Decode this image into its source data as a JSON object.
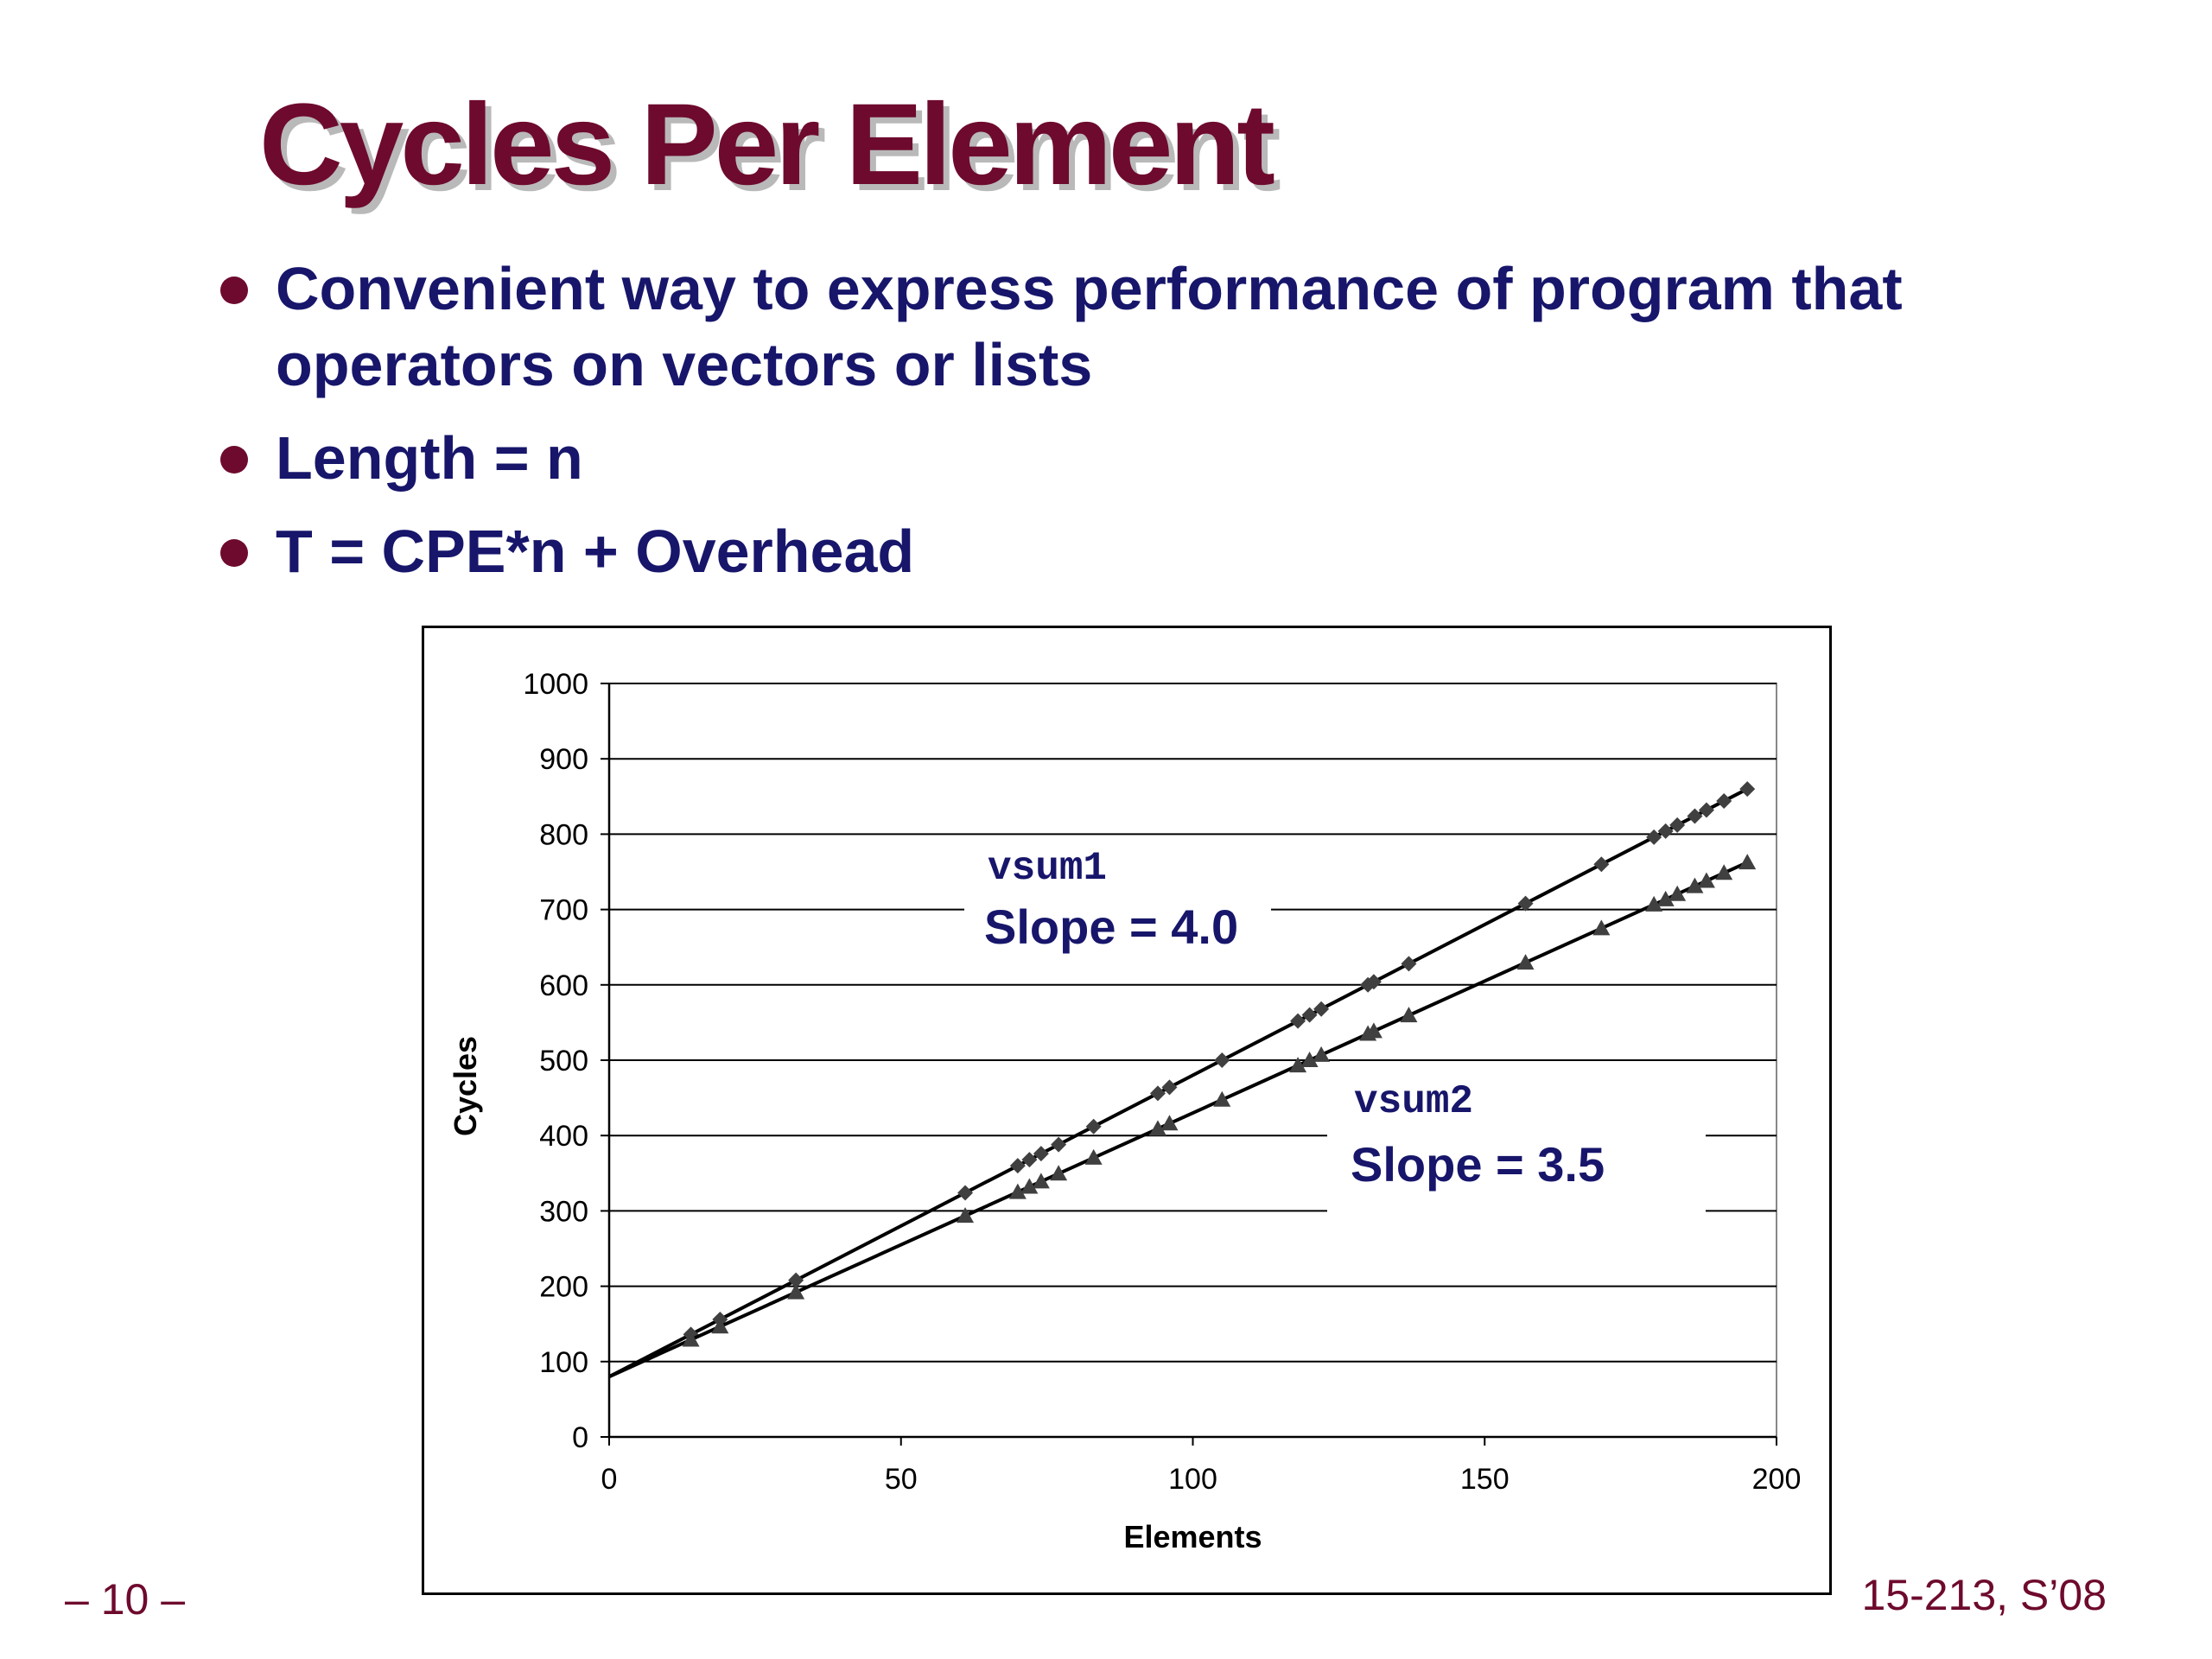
{
  "slide": {
    "title": "Cycles Per Element",
    "bullets": [
      "Convenient way to express performance of program that operators on vectors or lists",
      "Length = n",
      "T = CPE*n + Overhead"
    ],
    "page_number": "– 10 –",
    "course_id": "15-213, S’08"
  },
  "colors": {
    "title": "#6e0a2e",
    "title_shadow": "#b9b9b9",
    "bullet_text": "#17166b",
    "bullet_dot": "#6e0a2e",
    "annotation_text": "#17166b",
    "series_color": "#000000",
    "marker_color": "#404040"
  },
  "chart_data": {
    "type": "scatter",
    "xlabel": "Elements",
    "ylabel": "Cycles",
    "xlim": [
      0,
      200
    ],
    "ylim": [
      0,
      1000
    ],
    "x_ticks": [
      0,
      50,
      100,
      150,
      200
    ],
    "y_ticks": [
      0,
      100,
      200,
      300,
      400,
      500,
      600,
      700,
      800,
      900,
      1000
    ],
    "grid": "horizontal",
    "legend": "none",
    "series": [
      {
        "marker": "diamond",
        "points": [
          [
            14,
            136
          ],
          [
            19,
            156
          ],
          [
            32,
            208
          ],
          [
            61,
            324
          ],
          [
            70,
            360
          ],
          [
            72,
            368
          ],
          [
            74,
            376
          ],
          [
            77,
            388
          ],
          [
            83,
            412
          ],
          [
            94,
            456
          ],
          [
            96,
            464
          ],
          [
            105,
            500
          ],
          [
            118,
            552
          ],
          [
            120,
            560
          ],
          [
            122,
            568
          ],
          [
            130,
            600
          ],
          [
            131,
            604
          ],
          [
            137,
            628
          ],
          [
            157,
            708
          ],
          [
            170,
            760
          ],
          [
            179,
            796
          ],
          [
            181,
            804
          ],
          [
            183,
            812
          ],
          [
            186,
            824
          ],
          [
            188,
            832
          ],
          [
            191,
            844
          ],
          [
            195,
            860
          ]
        ],
        "fit": {
          "slope": 4.0,
          "intercept": 80
        }
      },
      {
        "marker": "triangle",
        "points": [
          [
            14,
            129
          ],
          [
            19,
            146.5
          ],
          [
            32,
            192
          ],
          [
            61,
            293.5
          ],
          [
            70,
            325
          ],
          [
            72,
            332
          ],
          [
            74,
            339
          ],
          [
            77,
            349.5
          ],
          [
            83,
            370.5
          ],
          [
            94,
            409
          ],
          [
            96,
            416
          ],
          [
            105,
            447.5
          ],
          [
            118,
            493
          ],
          [
            120,
            500
          ],
          [
            122,
            507
          ],
          [
            130,
            535
          ],
          [
            131,
            538.5
          ],
          [
            137,
            559.5
          ],
          [
            157,
            629.5
          ],
          [
            170,
            675
          ],
          [
            179,
            706.5
          ],
          [
            181,
            713.5
          ],
          [
            183,
            720.5
          ],
          [
            186,
            731
          ],
          [
            188,
            738
          ],
          [
            191,
            748.5
          ],
          [
            195,
            762.5
          ]
        ],
        "fit": {
          "slope": 3.5,
          "intercept": 80
        }
      }
    ],
    "annotations": [
      {
        "name": "vsum1",
        "text": "Slope = 4.0"
      },
      {
        "name": "vsum2",
        "text": "Slope = 3.5"
      }
    ]
  }
}
